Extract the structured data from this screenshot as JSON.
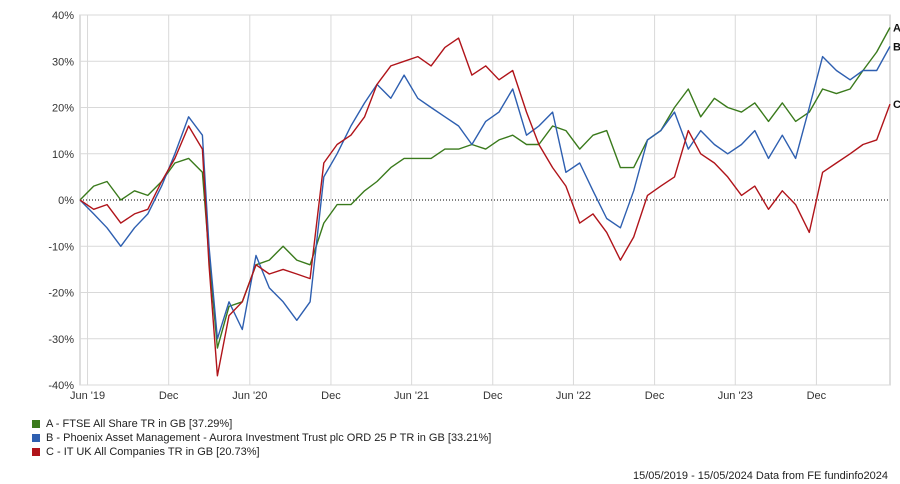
{
  "chart_data": {
    "type": "line",
    "title": "",
    "xlabel": "",
    "ylabel": "",
    "ylim": [
      -40,
      40
    ],
    "y_ticks": [
      -40,
      -30,
      -20,
      -10,
      0,
      10,
      20,
      30,
      40
    ],
    "y_tick_labels": [
      "-40%",
      "-30%",
      "-20%",
      "-10%",
      "0%",
      "10%",
      "20%",
      "30%",
      "40%"
    ],
    "x_range": [
      "2019-05-15",
      "2024-05-15"
    ],
    "x_ticks": [
      {
        "date": "2019-06-01",
        "label": "Jun '19"
      },
      {
        "date": "2019-12-01",
        "label": "Dec"
      },
      {
        "date": "2020-06-01",
        "label": "Jun '20"
      },
      {
        "date": "2020-12-01",
        "label": "Dec"
      },
      {
        "date": "2021-06-01",
        "label": "Jun '21"
      },
      {
        "date": "2021-12-01",
        "label": "Dec"
      },
      {
        "date": "2022-06-01",
        "label": "Jun '22"
      },
      {
        "date": "2022-12-01",
        "label": "Dec"
      },
      {
        "date": "2023-06-01",
        "label": "Jun '23"
      },
      {
        "date": "2023-12-01",
        "label": "Dec"
      }
    ],
    "grid": true,
    "zero_line": "dotted",
    "legend_position": "bottom-left",
    "series": [
      {
        "name": "A - FTSE All Share TR in GB [37.29%]",
        "end_label": "A",
        "color": "#3a7a1c",
        "points": [
          [
            "2019-05-15",
            0
          ],
          [
            "2019-06-15",
            3
          ],
          [
            "2019-07-15",
            4
          ],
          [
            "2019-08-15",
            0
          ],
          [
            "2019-09-15",
            2
          ],
          [
            "2019-10-15",
            1
          ],
          [
            "2019-11-15",
            4
          ],
          [
            "2019-12-15",
            8
          ],
          [
            "2020-01-15",
            9
          ],
          [
            "2020-02-15",
            6
          ],
          [
            "2020-03-01",
            -12
          ],
          [
            "2020-03-20",
            -32
          ],
          [
            "2020-04-15",
            -23
          ],
          [
            "2020-05-15",
            -22
          ],
          [
            "2020-06-15",
            -14
          ],
          [
            "2020-07-15",
            -13
          ],
          [
            "2020-08-15",
            -10
          ],
          [
            "2020-09-15",
            -13
          ],
          [
            "2020-10-15",
            -14
          ],
          [
            "2020-11-15",
            -5
          ],
          [
            "2020-12-15",
            -1
          ],
          [
            "2021-01-15",
            -1
          ],
          [
            "2021-02-15",
            2
          ],
          [
            "2021-03-15",
            4
          ],
          [
            "2021-04-15",
            7
          ],
          [
            "2021-05-15",
            9
          ],
          [
            "2021-06-15",
            9
          ],
          [
            "2021-07-15",
            9
          ],
          [
            "2021-08-15",
            11
          ],
          [
            "2021-09-15",
            11
          ],
          [
            "2021-10-15",
            12
          ],
          [
            "2021-11-15",
            11
          ],
          [
            "2021-12-15",
            13
          ],
          [
            "2022-01-15",
            14
          ],
          [
            "2022-02-15",
            12
          ],
          [
            "2022-03-15",
            12
          ],
          [
            "2022-04-15",
            16
          ],
          [
            "2022-05-15",
            15
          ],
          [
            "2022-06-15",
            11
          ],
          [
            "2022-07-15",
            14
          ],
          [
            "2022-08-15",
            15
          ],
          [
            "2022-09-15",
            7
          ],
          [
            "2022-10-15",
            7
          ],
          [
            "2022-11-15",
            13
          ],
          [
            "2022-12-15",
            15
          ],
          [
            "2023-01-15",
            20
          ],
          [
            "2023-02-15",
            24
          ],
          [
            "2023-03-15",
            18
          ],
          [
            "2023-04-15",
            22
          ],
          [
            "2023-05-15",
            20
          ],
          [
            "2023-06-15",
            19
          ],
          [
            "2023-07-15",
            21
          ],
          [
            "2023-08-15",
            17
          ],
          [
            "2023-09-15",
            21
          ],
          [
            "2023-10-15",
            17
          ],
          [
            "2023-11-15",
            19
          ],
          [
            "2023-12-15",
            24
          ],
          [
            "2024-01-15",
            23
          ],
          [
            "2024-02-15",
            24
          ],
          [
            "2024-03-15",
            28
          ],
          [
            "2024-04-15",
            32
          ],
          [
            "2024-05-15",
            37.29
          ]
        ]
      },
      {
        "name": "B - Phoenix Asset Management - Aurora Investment Trust plc ORD 25 P TR in GB [33.21%]",
        "end_label": "B",
        "color": "#2e5fb0",
        "points": [
          [
            "2019-05-15",
            0
          ],
          [
            "2019-06-15",
            -3
          ],
          [
            "2019-07-15",
            -6
          ],
          [
            "2019-08-15",
            -10
          ],
          [
            "2019-09-15",
            -6
          ],
          [
            "2019-10-15",
            -3
          ],
          [
            "2019-11-15",
            3
          ],
          [
            "2019-12-15",
            10
          ],
          [
            "2020-01-15",
            18
          ],
          [
            "2020-02-15",
            14
          ],
          [
            "2020-03-01",
            -10
          ],
          [
            "2020-03-20",
            -30
          ],
          [
            "2020-04-15",
            -22
          ],
          [
            "2020-05-15",
            -28
          ],
          [
            "2020-06-15",
            -12
          ],
          [
            "2020-07-15",
            -19
          ],
          [
            "2020-08-15",
            -22
          ],
          [
            "2020-09-15",
            -26
          ],
          [
            "2020-10-15",
            -22
          ],
          [
            "2020-11-15",
            5
          ],
          [
            "2020-12-15",
            10
          ],
          [
            "2021-01-15",
            16
          ],
          [
            "2021-02-15",
            21
          ],
          [
            "2021-03-15",
            25
          ],
          [
            "2021-04-15",
            22
          ],
          [
            "2021-05-15",
            27
          ],
          [
            "2021-06-15",
            22
          ],
          [
            "2021-07-15",
            20
          ],
          [
            "2021-08-15",
            18
          ],
          [
            "2021-09-15",
            16
          ],
          [
            "2021-10-15",
            12
          ],
          [
            "2021-11-15",
            17
          ],
          [
            "2021-12-15",
            19
          ],
          [
            "2022-01-15",
            24
          ],
          [
            "2022-02-15",
            14
          ],
          [
            "2022-03-15",
            16
          ],
          [
            "2022-04-15",
            19
          ],
          [
            "2022-05-15",
            6
          ],
          [
            "2022-06-15",
            8
          ],
          [
            "2022-07-15",
            2
          ],
          [
            "2022-08-15",
            -4
          ],
          [
            "2022-09-15",
            -6
          ],
          [
            "2022-10-15",
            2
          ],
          [
            "2022-11-15",
            13
          ],
          [
            "2022-12-15",
            15
          ],
          [
            "2023-01-15",
            19
          ],
          [
            "2023-02-15",
            11
          ],
          [
            "2023-03-15",
            15
          ],
          [
            "2023-04-15",
            12
          ],
          [
            "2023-05-15",
            10
          ],
          [
            "2023-06-15",
            12
          ],
          [
            "2023-07-15",
            15
          ],
          [
            "2023-08-15",
            9
          ],
          [
            "2023-09-15",
            14
          ],
          [
            "2023-10-15",
            9
          ],
          [
            "2023-11-15",
            20
          ],
          [
            "2023-12-15",
            31
          ],
          [
            "2024-01-15",
            28
          ],
          [
            "2024-02-15",
            26
          ],
          [
            "2024-03-15",
            28
          ],
          [
            "2024-04-15",
            28
          ],
          [
            "2024-05-15",
            33.21
          ]
        ]
      },
      {
        "name": "C - IT UK All Companies TR in GB [20.73%]",
        "end_label": "C",
        "color": "#b0141a",
        "points": [
          [
            "2019-05-15",
            0
          ],
          [
            "2019-06-15",
            -2
          ],
          [
            "2019-07-15",
            -1
          ],
          [
            "2019-08-15",
            -5
          ],
          [
            "2019-09-15",
            -3
          ],
          [
            "2019-10-15",
            -2
          ],
          [
            "2019-11-15",
            4
          ],
          [
            "2019-12-15",
            9
          ],
          [
            "2020-01-15",
            16
          ],
          [
            "2020-02-15",
            11
          ],
          [
            "2020-03-01",
            -14
          ],
          [
            "2020-03-20",
            -38
          ],
          [
            "2020-04-15",
            -25
          ],
          [
            "2020-05-15",
            -22
          ],
          [
            "2020-06-15",
            -14
          ],
          [
            "2020-07-15",
            -16
          ],
          [
            "2020-08-15",
            -15
          ],
          [
            "2020-09-15",
            -16
          ],
          [
            "2020-10-15",
            -17
          ],
          [
            "2020-11-15",
            8
          ],
          [
            "2020-12-15",
            12
          ],
          [
            "2021-01-15",
            14
          ],
          [
            "2021-02-15",
            18
          ],
          [
            "2021-03-15",
            25
          ],
          [
            "2021-04-15",
            29
          ],
          [
            "2021-05-15",
            30
          ],
          [
            "2021-06-15",
            31
          ],
          [
            "2021-07-15",
            29
          ],
          [
            "2021-08-15",
            33
          ],
          [
            "2021-09-15",
            35
          ],
          [
            "2021-10-15",
            27
          ],
          [
            "2021-11-15",
            29
          ],
          [
            "2021-12-15",
            26
          ],
          [
            "2022-01-15",
            28
          ],
          [
            "2022-02-15",
            19
          ],
          [
            "2022-03-15",
            12
          ],
          [
            "2022-04-15",
            7
          ],
          [
            "2022-05-15",
            3
          ],
          [
            "2022-06-15",
            -5
          ],
          [
            "2022-07-15",
            -3
          ],
          [
            "2022-08-15",
            -7
          ],
          [
            "2022-09-15",
            -13
          ],
          [
            "2022-10-15",
            -8
          ],
          [
            "2022-11-15",
            1
          ],
          [
            "2022-12-15",
            3
          ],
          [
            "2023-01-15",
            5
          ],
          [
            "2023-02-15",
            15
          ],
          [
            "2023-03-15",
            10
          ],
          [
            "2023-04-15",
            8
          ],
          [
            "2023-05-15",
            5
          ],
          [
            "2023-06-15",
            1
          ],
          [
            "2023-07-15",
            3
          ],
          [
            "2023-08-15",
            -2
          ],
          [
            "2023-09-15",
            2
          ],
          [
            "2023-10-15",
            -1
          ],
          [
            "2023-11-15",
            -7
          ],
          [
            "2023-12-15",
            6
          ],
          [
            "2024-01-15",
            8
          ],
          [
            "2024-02-15",
            10
          ],
          [
            "2024-03-15",
            12
          ],
          [
            "2024-04-15",
            13
          ],
          [
            "2024-05-15",
            20.73
          ]
        ]
      }
    ]
  },
  "footer": {
    "date_range": "15/05/2019 - 15/05/2024",
    "source": "Data from FE fundinfo2024"
  }
}
